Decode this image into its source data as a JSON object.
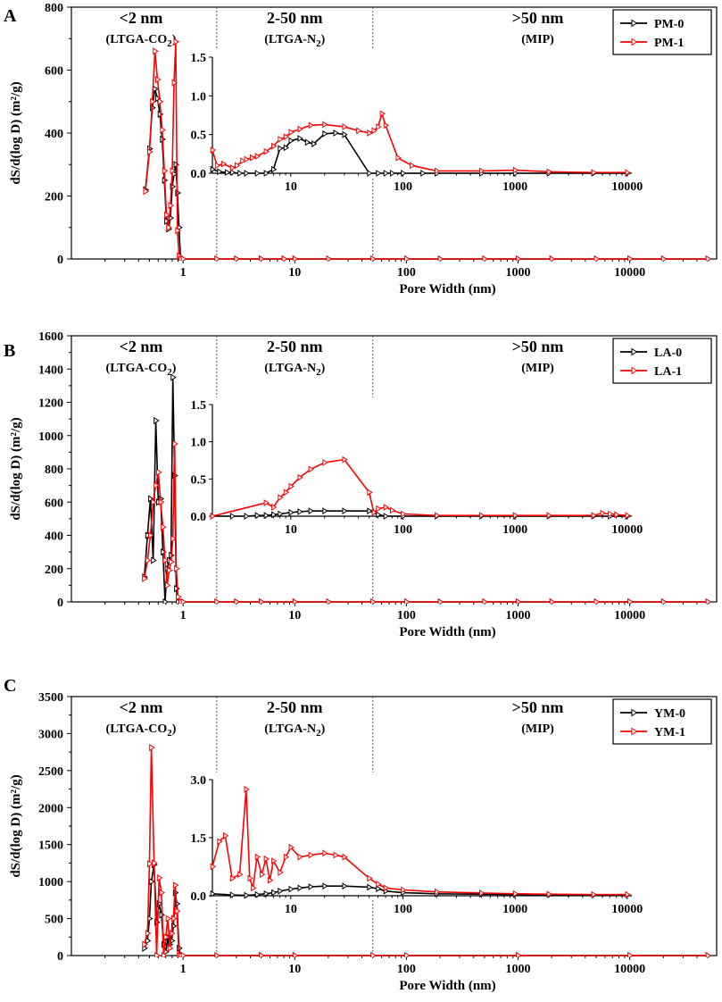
{
  "figure": {
    "colors": {
      "series0": "#000000",
      "series1": "#ff0000",
      "divider": "#555555",
      "axis": "#000000"
    }
  },
  "chart_data": [
    {
      "panel_label": "A",
      "type": "line",
      "title": "",
      "xlabel": "Pore Width (nm)",
      "ylabel": "dS/d(log D) (m²/g)",
      "xscale": "log",
      "xlim": [
        0.1,
        60000
      ],
      "ylim": [
        0,
        800
      ],
      "y_ticks": [
        0,
        200,
        400,
        600,
        800
      ],
      "x_ticks": [
        1,
        10,
        100,
        1000,
        10000
      ],
      "x_tick_labels": [
        "1",
        "10",
        "100",
        "1000",
        "10000"
      ],
      "dividers": [
        2,
        50
      ],
      "region_labels": [
        {
          "line1": "<2 nm",
          "line2": "(LTGA-CO",
          "sub": "2",
          "tail": ")",
          "x": 0.42
        },
        {
          "line1": "2-50 nm",
          "line2": "(LTGA-N",
          "sub": "2",
          "tail": ")",
          "x": 10
        },
        {
          "line1": ">50 nm",
          "line2": "(MIP)",
          "sub": "",
          "tail": "",
          "x": 1500
        }
      ],
      "legend": {
        "placement": "top-right",
        "entries": [
          "PM-0",
          "PM-1"
        ]
      },
      "series": [
        {
          "name": "PM-0",
          "x": [
            0.46,
            0.5,
            0.53,
            0.56,
            0.59,
            0.62,
            0.65,
            0.68,
            0.71,
            0.74,
            0.77,
            0.8,
            0.83,
            0.86,
            0.89,
            0.92,
            0.95,
            1,
            2,
            3,
            5,
            8,
            10,
            20,
            50,
            100,
            200,
            500,
            1000,
            2000,
            5000,
            10000,
            20000,
            50000
          ],
          "y": [
            220,
            350,
            480,
            540,
            510,
            460,
            380,
            250,
            120,
            95,
            130,
            230,
            270,
            300,
            210,
            100,
            0,
            0,
            0,
            0,
            0,
            0,
            0,
            0,
            0,
            0,
            0,
            0,
            0,
            0,
            0,
            0,
            0,
            0
          ]
        },
        {
          "name": "PM-1",
          "x": [
            0.46,
            0.5,
            0.53,
            0.56,
            0.59,
            0.62,
            0.65,
            0.68,
            0.71,
            0.74,
            0.77,
            0.8,
            0.83,
            0.86,
            0.89,
            0.92,
            0.95,
            1,
            2,
            3,
            5,
            8,
            10,
            20,
            50,
            100,
            200,
            500,
            1000,
            2000,
            5000,
            10000,
            20000,
            50000
          ],
          "y": [
            215,
            340,
            500,
            660,
            570,
            500,
            410,
            280,
            140,
            100,
            170,
            280,
            560,
            690,
            90,
            10,
            0,
            0,
            0,
            0,
            0,
            0,
            0,
            0,
            0,
            0,
            0,
            0,
            0,
            0,
            0,
            0,
            0,
            0
          ]
        }
      ],
      "inset": {
        "xscale": "log",
        "xlim": [
          2,
          11000
        ],
        "ylim": [
          0,
          1.5
        ],
        "y_ticks": [
          0.0,
          0.5,
          1.0,
          1.5
        ],
        "y_tick_labels": [
          "0.0",
          "0.5",
          "1.0",
          "1.5"
        ],
        "x_ticks": [
          10,
          100,
          1000,
          10000
        ],
        "x_tick_labels": [
          "10",
          "100",
          "1000",
          "10000"
        ],
        "series": [
          {
            "name": "PM-0",
            "x": [
              2,
              2.3,
              2.7,
              3,
              3.5,
              4,
              5,
              6,
              7,
              8,
              9,
              10,
              12,
              14,
              16,
              20,
              25,
              30,
              50,
              60,
              70,
              80,
              100,
              150,
              200,
              500,
              1000,
              2000,
              5000,
              10000
            ],
            "y": [
              0.05,
              0.02,
              0.01,
              0.01,
              0,
              0,
              0,
              0,
              0.05,
              0.32,
              0.33,
              0.42,
              0.45,
              0.4,
              0.38,
              0.51,
              0.52,
              0.5,
              0,
              0,
              0,
              0,
              0,
              0,
              0,
              0,
              0,
              0,
              0,
              0
            ]
          },
          {
            "name": "PM-1",
            "x": [
              2,
              2.2,
              2.5,
              3,
              3.3,
              3.7,
              4,
              4.5,
              5,
              6,
              7,
              8,
              9,
              10,
              12,
              15,
              20,
              30,
              40,
              50,
              55,
              60,
              65,
              70,
              90,
              120,
              200,
              500,
              1000,
              2000,
              5000,
              10000
            ],
            "y": [
              0.3,
              0.1,
              0.12,
              0.07,
              0.1,
              0.16,
              0.18,
              0.2,
              0.22,
              0.28,
              0.35,
              0.44,
              0.47,
              0.53,
              0.57,
              0.62,
              0.63,
              0.6,
              0.55,
              0.52,
              0.55,
              0.6,
              0.77,
              0.62,
              0.2,
              0.1,
              0.03,
              0.03,
              0.04,
              0.02,
              0.01,
              0.01
            ]
          }
        ]
      }
    },
    {
      "panel_label": "B",
      "type": "line",
      "title": "",
      "xlabel": "Pore Width (nm)",
      "ylabel": "dS/d(log D) (m²/g)",
      "xscale": "log",
      "xlim": [
        0.1,
        60000
      ],
      "ylim": [
        0,
        1600
      ],
      "y_ticks": [
        0,
        200,
        400,
        600,
        800,
        1000,
        1200,
        1400,
        1600
      ],
      "x_ticks": [
        1,
        10,
        100,
        1000,
        10000
      ],
      "x_tick_labels": [
        "1",
        "10",
        "100",
        "1000",
        "10000"
      ],
      "dividers": [
        2,
        50
      ],
      "region_labels": [
        {
          "line1": "<2 nm",
          "line2": "(LTGA-CO",
          "sub": "2",
          "tail": ")",
          "x": 0.42
        },
        {
          "line1": "2-50 nm",
          "line2": "(LTGA-N",
          "sub": "2",
          "tail": ")",
          "x": 10
        },
        {
          "line1": ">50 nm",
          "line2": "(MIP)",
          "sub": "",
          "tail": "",
          "x": 1500
        }
      ],
      "legend": {
        "placement": "top-right",
        "entries": [
          "LA-0",
          "LA-1"
        ]
      },
      "series": [
        {
          "name": "LA-0",
          "x": [
            0.45,
            0.48,
            0.51,
            0.54,
            0.57,
            0.6,
            0.63,
            0.66,
            0.69,
            0.72,
            0.75,
            0.78,
            0.81,
            0.84,
            0.87,
            0.9,
            0.95,
            1,
            2,
            3,
            5,
            10,
            20,
            50,
            100,
            200,
            500,
            1000,
            2000,
            5000,
            10000,
            20000,
            50000
          ],
          "y": [
            150,
            400,
            620,
            250,
            1090,
            600,
            620,
            300,
            0,
            200,
            250,
            280,
            1350,
            760,
            80,
            0,
            0,
            0,
            0,
            0,
            0,
            0,
            0,
            0,
            0,
            0,
            0,
            0,
            0,
            0,
            0,
            0,
            0
          ]
        },
        {
          "name": "LA-1",
          "x": [
            0.45,
            0.48,
            0.51,
            0.54,
            0.57,
            0.6,
            0.63,
            0.66,
            0.69,
            0.72,
            0.75,
            0.78,
            0.81,
            0.84,
            0.87,
            0.9,
            0.95,
            1,
            2,
            3,
            5,
            10,
            20,
            50,
            100,
            200,
            500,
            1000,
            2000,
            5000,
            10000,
            20000,
            50000
          ],
          "y": [
            140,
            250,
            400,
            600,
            700,
            780,
            600,
            450,
            250,
            100,
            190,
            240,
            380,
            950,
            200,
            30,
            0,
            0,
            0,
            0,
            0,
            0,
            0,
            0,
            0,
            0,
            0,
            0,
            0,
            0,
            0,
            0,
            0
          ]
        }
      ],
      "inset": {
        "xscale": "log",
        "xlim": [
          2,
          11000
        ],
        "ylim": [
          0,
          1.5
        ],
        "y_ticks": [
          0.0,
          0.5,
          1.0,
          1.5
        ],
        "y_tick_labels": [
          "0.0",
          "0.5",
          "1.0",
          "1.5"
        ],
        "x_ticks": [
          10,
          100,
          1000,
          10000
        ],
        "x_tick_labels": [
          "10",
          "100",
          "1000",
          "10000"
        ],
        "series": [
          {
            "name": "LA-0",
            "x": [
              2,
              3,
              4,
              5,
              6,
              7,
              8,
              10,
              12,
              15,
              20,
              30,
              50,
              60,
              70,
              100,
              200,
              500,
              1000,
              2000,
              5000,
              7000,
              10000
            ],
            "y": [
              0,
              0,
              0,
              0.01,
              0.01,
              0.02,
              0.03,
              0.05,
              0.06,
              0.07,
              0.07,
              0.07,
              0.07,
              0.02,
              0,
              0,
              0,
              0,
              0,
              0,
              0,
              0,
              0
            ]
          },
          {
            "name": "LA-1",
            "x": [
              2,
              6,
              7,
              8,
              9,
              10,
              12,
              15,
              20,
              30,
              50,
              55,
              60,
              70,
              80,
              100,
              200,
              500,
              1000,
              2000,
              5000,
              6000,
              7000,
              8000,
              10000
            ],
            "y": [
              0,
              0.18,
              0.12,
              0.25,
              0.32,
              0.4,
              0.52,
              0.63,
              0.72,
              0.76,
              0.32,
              0.05,
              0.1,
              0.12,
              0.08,
              0.03,
              0.01,
              0.01,
              0.01,
              0.01,
              0.01,
              0.04,
              0.03,
              0.02,
              0.01
            ]
          }
        ]
      }
    },
    {
      "panel_label": "C",
      "type": "line",
      "title": "",
      "xlabel": "Pore Width (nm)",
      "ylabel": "dS/d(log D) (m²/g)",
      "xscale": "log",
      "xlim": [
        0.1,
        60000
      ],
      "ylim": [
        0,
        3500
      ],
      "y_ticks": [
        0,
        500,
        1000,
        1500,
        2000,
        2500,
        3000,
        3500
      ],
      "x_ticks": [
        1,
        10,
        100,
        1000,
        10000
      ],
      "x_tick_labels": [
        "1",
        "10",
        "100",
        "1000",
        "10000"
      ],
      "dividers": [
        2,
        50
      ],
      "region_labels": [
        {
          "line1": "<2 nm",
          "line2": "(LTGA-CO",
          "sub": "2",
          "tail": ")",
          "x": 0.42
        },
        {
          "line1": "2-50 nm",
          "line2": "(LTGA-N",
          "sub": "2",
          "tail": ")",
          "x": 10
        },
        {
          "line1": ">50 nm",
          "line2": "(MIP)",
          "sub": "",
          "tail": "",
          "x": 1500
        }
      ],
      "legend": {
        "placement": "top-right",
        "entries": [
          "YM-0",
          "YM-1"
        ]
      },
      "series": [
        {
          "name": "YM-0",
          "x": [
            0.45,
            0.48,
            0.5,
            0.52,
            0.55,
            0.58,
            0.61,
            0.64,
            0.67,
            0.7,
            0.73,
            0.76,
            0.79,
            0.82,
            0.85,
            0.88,
            0.92,
            0.95,
            1,
            2,
            5,
            10,
            50,
            100,
            1000,
            10000,
            50000
          ],
          "y": [
            100,
            200,
            500,
            1000,
            1230,
            450,
            700,
            550,
            150,
            50,
            250,
            150,
            200,
            400,
            850,
            700,
            100,
            0,
            0,
            0,
            0,
            0,
            0,
            0,
            0,
            0,
            0
          ]
        },
        {
          "name": "YM-1",
          "x": [
            0.45,
            0.48,
            0.5,
            0.52,
            0.55,
            0.58,
            0.61,
            0.64,
            0.67,
            0.7,
            0.73,
            0.76,
            0.79,
            0.82,
            0.85,
            0.88,
            0.92,
            0.95,
            1,
            2,
            5,
            10,
            50,
            100,
            1000,
            10000,
            50000
          ],
          "y": [
            150,
            300,
            1240,
            2810,
            1250,
            0,
            1050,
            850,
            0,
            250,
            500,
            100,
            300,
            500,
            950,
            600,
            0,
            0,
            0,
            0,
            0,
            0,
            0,
            0,
            0,
            0,
            0
          ]
        }
      ],
      "inset": {
        "xscale": "log",
        "xlim": [
          2,
          11000
        ],
        "ylim": [
          0,
          3.0
        ],
        "y_ticks": [
          0.0,
          1.5,
          3.0
        ],
        "y_tick_labels": [
          "0.0",
          "1.5",
          "3.0"
        ],
        "x_ticks": [
          10,
          100,
          1000,
          10000
        ],
        "x_tick_labels": [
          "10",
          "100",
          "1000",
          "10000"
        ],
        "series": [
          {
            "name": "YM-0",
            "x": [
              2,
              3,
              4,
              5,
              6,
              7,
              8,
              10,
              12,
              15,
              20,
              30,
              50,
              60,
              70,
              100,
              200,
              500,
              1000,
              2000,
              5000,
              10000
            ],
            "y": [
              0.05,
              0.02,
              0.01,
              0.03,
              0.05,
              0.08,
              0.12,
              0.17,
              0.2,
              0.23,
              0.25,
              0.25,
              0.22,
              0.18,
              0.12,
              0.08,
              0.05,
              0.04,
              0.03,
              0.03,
              0.02,
              0.02
            ]
          },
          {
            "name": "YM-1",
            "x": [
              2,
              2.3,
              2.6,
              3,
              3.5,
              4,
              4.3,
              4.6,
              5,
              5.5,
              6,
              6.5,
              7,
              8,
              9,
              10,
              12,
              15,
              20,
              25,
              30,
              50,
              60,
              70,
              100,
              200,
              500,
              1000,
              2000,
              5000,
              10000
            ],
            "y": [
              0.75,
              1.4,
              1.55,
              0.45,
              0.55,
              2.75,
              0.45,
              0.2,
              1.0,
              0.55,
              0.95,
              0.4,
              0.9,
              0.6,
              1.0,
              1.25,
              1.0,
              1.05,
              1.1,
              1.05,
              1.0,
              0.45,
              0.3,
              0.2,
              0.15,
              0.1,
              0.07,
              0.05,
              0.04,
              0.03,
              0.03
            ]
          }
        ]
      }
    }
  ]
}
